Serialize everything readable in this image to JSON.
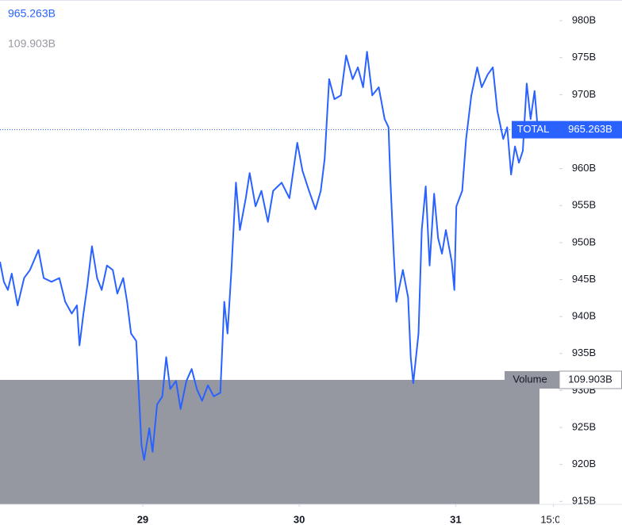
{
  "chart_data": {
    "type": "line",
    "symbol": "TOTAL",
    "last_value_label": "965.263B",
    "last_value": 965.263,
    "volume_name": "Volume",
    "volume_label": "109.903B",
    "volume": 109.903,
    "x": [
      2.1,
      2.7,
      3.3,
      3.9,
      4.8,
      5.8,
      6.7,
      8.0,
      8.8,
      10.0,
      11.2,
      12.1,
      13.1,
      13.9,
      14.3,
      14.9,
      15.5,
      16.2,
      17.0,
      17.7,
      18.5,
      19.4,
      20.1,
      21.0,
      21.6,
      22.2,
      23.0,
      23.8,
      24.2,
      25.0,
      25.5,
      26.2,
      27.0,
      27.6,
      28.2,
      29.1,
      29.8,
      30.7,
      31.5,
      32.3,
      33.1,
      34.0,
      34.9,
      35.9,
      36.5,
      37.0,
      37.6,
      38.3,
      38.9,
      39.8,
      40.4,
      41.3,
      42.2,
      43.2,
      44.0,
      45.3,
      46.5,
      47.7,
      48.5,
      49.5,
      50.5,
      51.3,
      51.9,
      52.6,
      53.4,
      54.4,
      55.2,
      56.2,
      57.0,
      57.8,
      58.4,
      59.2,
      60.2,
      61.1,
      61.7,
      62.0,
      62.5,
      62.9,
      63.9,
      64.7,
      65.1,
      65.5,
      66.3,
      66.8,
      67.4,
      68.0,
      68.7,
      69.3,
      69.9,
      70.5,
      71.4,
      71.8,
      72.1,
      73.0,
      73.6,
      74.4,
      75.3,
      76.0,
      76.9,
      77.7,
      78.4,
      79.3,
      79.9,
      80.5,
      81.1,
      81.7,
      82.3,
      82.9,
      83.5,
      84.1,
      84.6
    ],
    "series": [
      {
        "name": "TOTAL",
        "color": "#2962ff",
        "values": [
          947.4,
          944.7,
          943.6,
          945.8,
          941.5,
          945.2,
          946.3,
          949.0,
          945.2,
          944.7,
          945.2,
          942.0,
          940.4,
          941.5,
          936.1,
          940.4,
          944.2,
          949.5,
          945.2,
          943.6,
          946.9,
          946.3,
          943.1,
          945.2,
          942.0,
          937.7,
          936.7,
          922.7,
          920.6,
          924.9,
          921.7,
          928.1,
          929.2,
          934.5,
          930.2,
          931.3,
          927.5,
          931.3,
          932.9,
          930.2,
          928.6,
          930.7,
          929.2,
          929.7,
          942.0,
          937.7,
          946.3,
          958.1,
          951.7,
          956.0,
          959.4,
          954.9,
          957.0,
          952.8,
          957.0,
          958.1,
          956.0,
          963.5,
          959.7,
          957.0,
          954.5,
          957.0,
          961.3,
          972.1,
          969.4,
          969.9,
          975.3,
          972.1,
          973.7,
          971.0,
          975.8,
          969.9,
          971.0,
          966.7,
          965.6,
          958.1,
          948.5,
          942.0,
          946.3,
          942.6,
          934.5,
          931.0,
          937.7,
          951.7,
          957.6,
          946.9,
          956.6,
          950.6,
          948.5,
          951.7,
          947.4,
          943.6,
          954.9,
          957.0,
          964.0,
          969.9,
          973.7,
          971.0,
          972.7,
          973.7,
          967.8,
          964.0,
          965.6,
          959.2,
          963.0,
          960.8,
          962.4,
          971.5,
          966.7,
          970.5,
          965.263
        ]
      }
    ],
    "xlim": [
      2.1,
      87.9
    ],
    "xticks": [
      {
        "value": 24,
        "label": "29"
      },
      {
        "value": 48,
        "label": "30"
      },
      {
        "value": 72,
        "label": "31"
      },
      {
        "value": 87,
        "label": "15:00"
      }
    ],
    "ylim": [
      914.6,
      982.8
    ],
    "yticks": [
      {
        "value": 915,
        "label": "915B"
      },
      {
        "value": 920,
        "label": "920B"
      },
      {
        "value": 925,
        "label": "925B"
      },
      {
        "value": 930,
        "label": "930B"
      },
      {
        "value": 935,
        "label": "935B"
      },
      {
        "value": 940,
        "label": "940B"
      },
      {
        "value": 945,
        "label": "945B"
      },
      {
        "value": 950,
        "label": "950B"
      },
      {
        "value": 955,
        "label": "955B"
      },
      {
        "value": 960,
        "label": "960B"
      },
      {
        "value": 965,
        "label": "965B"
      },
      {
        "value": 970,
        "label": "970B"
      },
      {
        "value": 975,
        "label": "975B"
      },
      {
        "value": 980,
        "label": "980B"
      }
    ],
    "grid": false
  }
}
